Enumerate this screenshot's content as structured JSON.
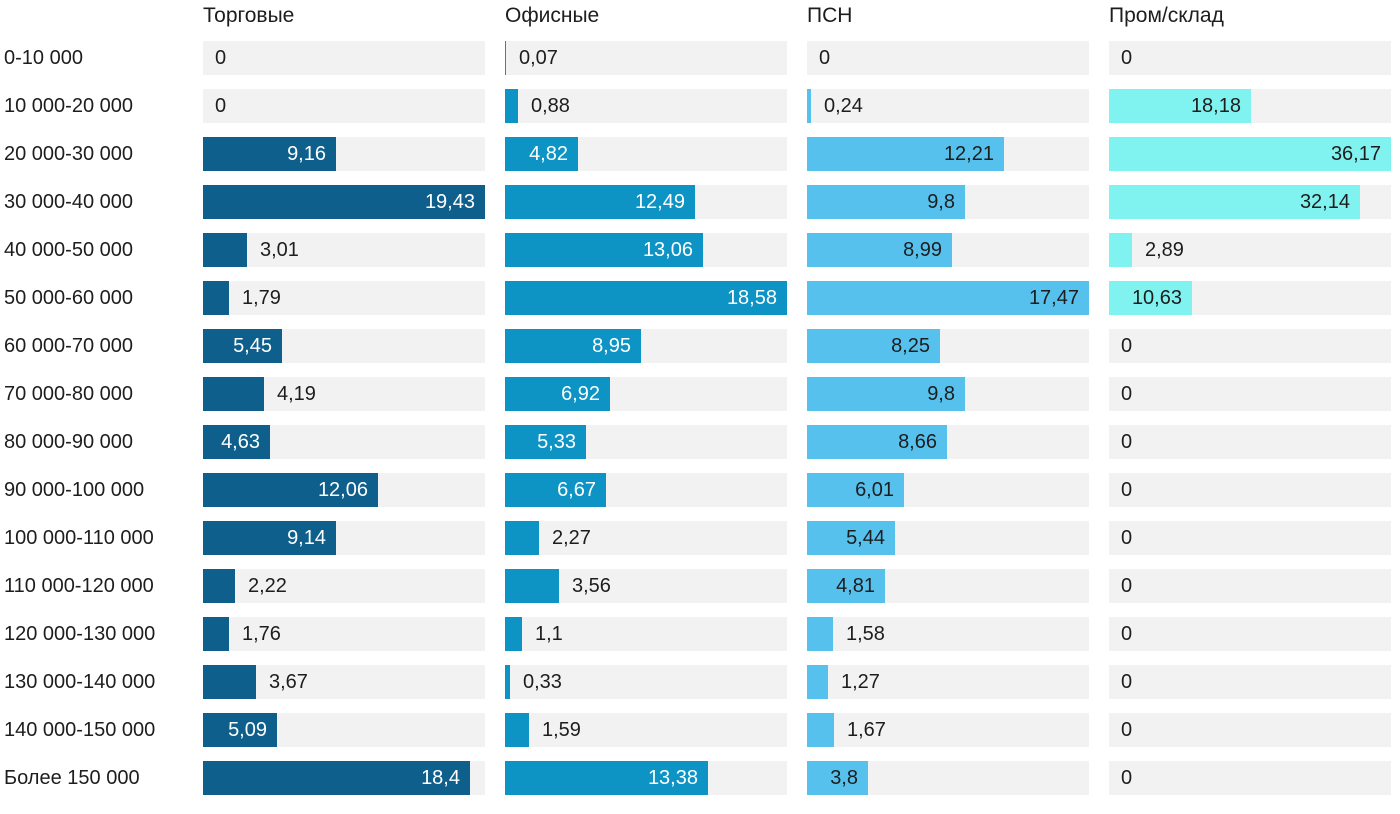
{
  "chart_data": {
    "type": "bar",
    "orientation": "horizontal",
    "title": "",
    "xlabel": "",
    "ylabel": "",
    "grid": false,
    "legend_position": "column-headers-top",
    "track_color": "#f2f2f2",
    "outside_label_color": "#1d1d1d",
    "categories": [
      "0-10 000",
      "10 000-20 000",
      "20 000-30 000",
      "30 000-40 000",
      "40 000-50 000",
      "50 000-60 000",
      "60 000-70 000",
      "70 000-80 000",
      "80 000-90 000",
      "90 000-100 000",
      "100 000-110 000",
      "110 000-120 000",
      "120 000-130 000",
      "130 000-140 000",
      "140 000-150 000",
      "Более 150 000"
    ],
    "series": [
      {
        "name": "Торговые",
        "color": "#0e5f8c",
        "label_color_inside": "#ffffff",
        "xlim": [
          0,
          19.43
        ],
        "values": [
          0,
          0,
          9.16,
          19.43,
          3.01,
          1.79,
          5.45,
          4.19,
          4.63,
          12.06,
          9.14,
          2.22,
          1.76,
          3.67,
          5.09,
          18.4
        ],
        "labels": [
          "0",
          "0",
          "9,16",
          "19,43",
          "3,01",
          "1,79",
          "5,45",
          "4,19",
          "4,63",
          "12,06",
          "9,14",
          "2,22",
          "1,76",
          "3,67",
          "5,09",
          "18,4"
        ],
        "label_placement": [
          "zero",
          "zero",
          "inside",
          "inside",
          "outside",
          "outside",
          "inside",
          "outside",
          "inside",
          "inside",
          "inside",
          "outside",
          "outside",
          "outside",
          "inside",
          "inside"
        ]
      },
      {
        "name": "Офисные",
        "color": "#0d94c4",
        "label_color_inside": "#ffffff",
        "xlim": [
          0,
          18.58
        ],
        "values": [
          0.07,
          0.88,
          4.82,
          12.49,
          13.06,
          18.58,
          8.95,
          6.92,
          5.33,
          6.67,
          2.27,
          3.56,
          1.1,
          0.33,
          1.59,
          13.38
        ],
        "labels": [
          "0,07",
          "0,88",
          "4,82",
          "12,49",
          "13,06",
          "18,58",
          "8,95",
          "6,92",
          "5,33",
          "6,67",
          "2,27",
          "3,56",
          "1,1",
          "0,33",
          "1,59",
          "13,38"
        ],
        "label_placement": [
          "outside",
          "outside",
          "inside",
          "inside",
          "inside",
          "inside",
          "inside",
          "inside",
          "inside",
          "inside",
          "outside",
          "outside",
          "outside",
          "outside",
          "outside",
          "inside"
        ]
      },
      {
        "name": "ПСН",
        "color": "#57c1ee",
        "label_color_inside": "#1d1d1d",
        "xlim": [
          0,
          17.47
        ],
        "values": [
          0,
          0.24,
          12.21,
          9.8,
          8.99,
          17.47,
          8.25,
          9.8,
          8.66,
          6.01,
          5.44,
          4.81,
          1.58,
          1.27,
          1.67,
          3.8
        ],
        "labels": [
          "0",
          "0,24",
          "12,21",
          "9,8",
          "8,99",
          "17,47",
          "8,25",
          "9,8",
          "8,66",
          "6,01",
          "5,44",
          "4,81",
          "1,58",
          "1,27",
          "1,67",
          "3,8"
        ],
        "label_placement": [
          "zero",
          "outside",
          "inside",
          "inside",
          "inside",
          "inside",
          "inside",
          "inside",
          "inside",
          "inside",
          "inside",
          "inside",
          "outside",
          "outside",
          "outside",
          "inside"
        ]
      },
      {
        "name": "Пром/склад",
        "color": "#80f2ef",
        "label_color_inside": "#1d1d1d",
        "xlim": [
          0,
          36.17
        ],
        "values": [
          0,
          18.18,
          36.17,
          32.14,
          2.89,
          10.63,
          0,
          0,
          0,
          0,
          0,
          0,
          0,
          0,
          0,
          0
        ],
        "labels": [
          "0",
          "18,18",
          "36,17",
          "32,14",
          "2,89",
          "10,63",
          "0",
          "0",
          "0",
          "0",
          "0",
          "0",
          "0",
          "0",
          "0",
          "0"
        ],
        "label_placement": [
          "zero",
          "inside",
          "inside",
          "inside",
          "outside",
          "inside",
          "zero",
          "zero",
          "zero",
          "zero",
          "zero",
          "zero",
          "zero",
          "zero",
          "zero",
          "zero"
        ]
      }
    ]
  }
}
